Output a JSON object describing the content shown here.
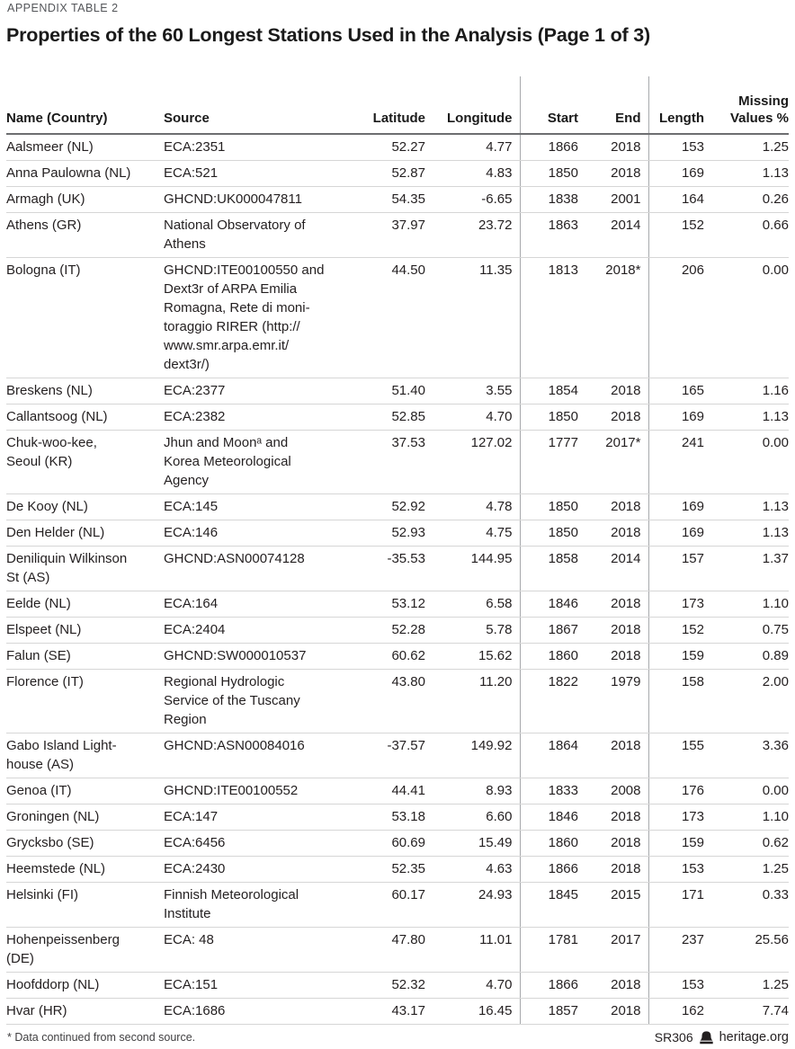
{
  "page": {
    "eyebrow": "APPENDIX TABLE 2",
    "title": "Properties of the 60 Longest Stations Used in the Analysis (Page 1 of 3)",
    "footnote": "* Data continued from second source.",
    "report_id": "SR306",
    "site": "heritage.org"
  },
  "table": {
    "header": {
      "name": "Name (Country)",
      "source": "Source",
      "latitude": "Latitude",
      "longitude": "Longitude",
      "start": "Start",
      "end": "End",
      "length": "Length",
      "missing": "Missing\nValues %"
    },
    "rows": [
      {
        "name": "Aalsmeer (NL)",
        "source": "ECA:2351",
        "latitude": "52.27",
        "longitude": "4.77",
        "start": "1866",
        "end": "2018",
        "length": "153",
        "missing": "1.25"
      },
      {
        "name": "Anna Paulowna (NL)",
        "source": "ECA:521",
        "latitude": "52.87",
        "longitude": "4.83",
        "start": "1850",
        "end": "2018",
        "length": "169",
        "missing": "1.13"
      },
      {
        "name": "Armagh (UK)",
        "source": "GHCND:UK000047811",
        "latitude": "54.35",
        "longitude": "-6.65",
        "start": "1838",
        "end": "2001",
        "length": "164",
        "missing": "0.26"
      },
      {
        "name": "Athens (GR)",
        "source": "National Observatory of\nAthens",
        "latitude": "37.97",
        "longitude": "23.72",
        "start": "1863",
        "end": "2014",
        "length": "152",
        "missing": "0.66"
      },
      {
        "name": "Bologna (IT)",
        "source": "GHCND:ITE00100550 and\nDext3r of ARPA Emilia\nRomagna, Rete di moni-\ntoraggio RIRER (http://\nwww.smr.arpa.emr.it/\ndext3r/)",
        "latitude": "44.50",
        "longitude": "11.35",
        "start": "1813",
        "end": "2018*",
        "length": "206",
        "missing": "0.00"
      },
      {
        "name": "Breskens (NL)",
        "source": "ECA:2377",
        "latitude": "51.40",
        "longitude": "3.55",
        "start": "1854",
        "end": "2018",
        "length": "165",
        "missing": "1.16"
      },
      {
        "name": "Callantsoog (NL)",
        "source": "ECA:2382",
        "latitude": "52.85",
        "longitude": "4.70",
        "start": "1850",
        "end": "2018",
        "length": "169",
        "missing": "1.13"
      },
      {
        "name": "Chuk-woo-kee,\nSeoul (KR)",
        "source": "Jhun and Moonᵃ and\nKorea Meteorological\nAgency",
        "latitude": "37.53",
        "longitude": "127.02",
        "start": "1777",
        "end": "2017*",
        "length": "241",
        "missing": "0.00"
      },
      {
        "name": "De Kooy (NL)",
        "source": "ECA:145",
        "latitude": "52.92",
        "longitude": "4.78",
        "start": "1850",
        "end": "2018",
        "length": "169",
        "missing": "1.13"
      },
      {
        "name": "Den Helder (NL)",
        "source": "ECA:146",
        "latitude": "52.93",
        "longitude": "4.75",
        "start": "1850",
        "end": "2018",
        "length": "169",
        "missing": "1.13"
      },
      {
        "name": "Deniliquin Wilkinson\nSt (AS)",
        "source": "GHCND:ASN00074128",
        "latitude": "-35.53",
        "longitude": "144.95",
        "start": "1858",
        "end": "2014",
        "length": "157",
        "missing": "1.37"
      },
      {
        "name": "Eelde (NL)",
        "source": "ECA:164",
        "latitude": "53.12",
        "longitude": "6.58",
        "start": "1846",
        "end": "2018",
        "length": "173",
        "missing": "1.10"
      },
      {
        "name": "Elspeet (NL)",
        "source": "ECA:2404",
        "latitude": "52.28",
        "longitude": "5.78",
        "start": "1867",
        "end": "2018",
        "length": "152",
        "missing": "0.75"
      },
      {
        "name": "Falun (SE)",
        "source": "GHCND:SW000010537",
        "latitude": "60.62",
        "longitude": "15.62",
        "start": "1860",
        "end": "2018",
        "length": "159",
        "missing": "0.89"
      },
      {
        "name": "Florence (IT)",
        "source": "Regional Hydrologic\nService of the Tuscany\nRegion",
        "latitude": "43.80",
        "longitude": "11.20",
        "start": "1822",
        "end": "1979",
        "length": "158",
        "missing": "2.00"
      },
      {
        "name": "Gabo Island Light-\nhouse (AS)",
        "source": "GHCND:ASN00084016",
        "latitude": "-37.57",
        "longitude": "149.92",
        "start": "1864",
        "end": "2018",
        "length": "155",
        "missing": "3.36"
      },
      {
        "name": "Genoa (IT)",
        "source": "GHCND:ITE00100552",
        "latitude": "44.41",
        "longitude": "8.93",
        "start": "1833",
        "end": "2008",
        "length": "176",
        "missing": "0.00"
      },
      {
        "name": "Groningen (NL)",
        "source": "ECA:147",
        "latitude": "53.18",
        "longitude": "6.60",
        "start": "1846",
        "end": "2018",
        "length": "173",
        "missing": "1.10"
      },
      {
        "name": "Grycksbo (SE)",
        "source": "ECA:6456",
        "latitude": "60.69",
        "longitude": "15.49",
        "start": "1860",
        "end": "2018",
        "length": "159",
        "missing": "0.62"
      },
      {
        "name": "Heemstede (NL)",
        "source": "ECA:2430",
        "latitude": "52.35",
        "longitude": "4.63",
        "start": "1866",
        "end": "2018",
        "length": "153",
        "missing": "1.25"
      },
      {
        "name": "Helsinki (FI)",
        "source": "Finnish Meteorological\nInstitute",
        "latitude": "60.17",
        "longitude": "24.93",
        "start": "1845",
        "end": "2015",
        "length": "171",
        "missing": "0.33"
      },
      {
        "name": "Hohenpeissenberg\n(DE)",
        "source": "ECA: 48",
        "latitude": "47.80",
        "longitude": "11.01",
        "start": "1781",
        "end": "2017",
        "length": "237",
        "missing": "25.56"
      },
      {
        "name": "Hoofddorp (NL)",
        "source": "ECA:151",
        "latitude": "52.32",
        "longitude": "4.70",
        "start": "1866",
        "end": "2018",
        "length": "153",
        "missing": "1.25"
      },
      {
        "name": "Hvar (HR)",
        "source": "ECA:1686",
        "latitude": "43.17",
        "longitude": "16.45",
        "start": "1857",
        "end": "2018",
        "length": "162",
        "missing": "7.74"
      }
    ]
  }
}
